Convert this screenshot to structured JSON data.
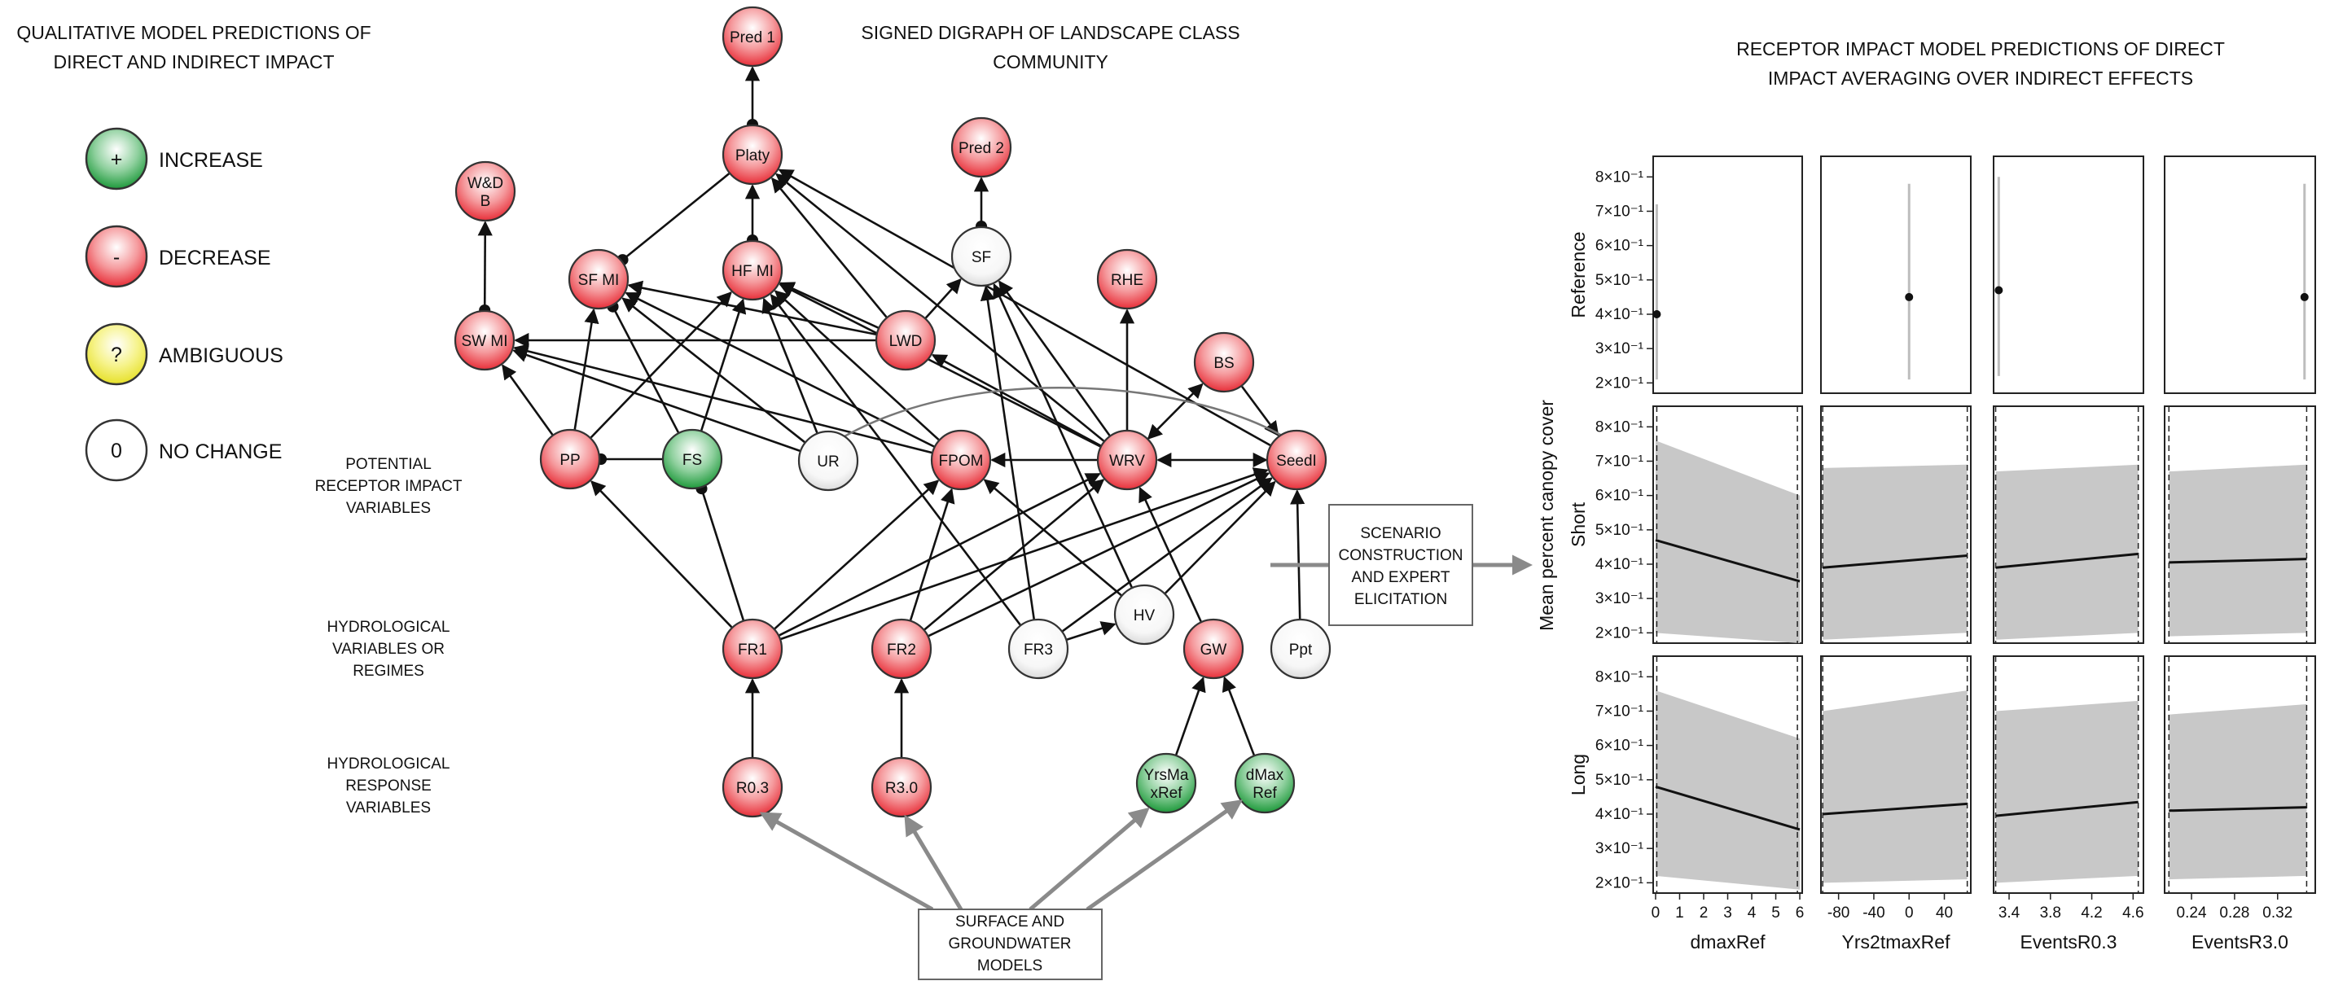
{
  "headers": {
    "left": [
      "QUALITATIVE MODEL PREDICTIONS OF",
      "DIRECT AND INDIRECT IMPACT"
    ],
    "middle": [
      "SIGNED DIGRAPH OF LANDSCAPE CLASS",
      "COMMUNITY"
    ],
    "right": [
      "RECEPTOR IMPACT MODEL PREDICTIONS OF DIRECT",
      "IMPACT AVERAGING OVER INDIRECT EFFECTS"
    ]
  },
  "legend": [
    {
      "symbol": "+",
      "label": "INCREASE",
      "color": "#1f9a3c"
    },
    {
      "symbol": "-",
      "label": "DECREASE",
      "color": "#e8303a"
    },
    {
      "symbol": "?",
      "label": "AMBIGUOUS",
      "color": "#f2ef3a"
    },
    {
      "symbol": "0",
      "label": "NO CHANGE",
      "color": "#ffffff"
    }
  ],
  "side_labels": {
    "receptor": [
      "POTENTIAL",
      "RECEPTOR IMPACT",
      "VARIABLES"
    ],
    "hydro_vars": [
      "HYDROLOGICAL",
      "VARIABLES OR",
      "REGIMES"
    ],
    "hydro_resp": [
      "HYDROLOGICAL",
      "RESPONSE",
      "VARIABLES"
    ]
  },
  "nodes": {
    "pred1": {
      "label": [
        "Pred 1"
      ],
      "type": "decrease"
    },
    "pred2": {
      "label": [
        "Pred 2"
      ],
      "type": "decrease"
    },
    "platy": {
      "label": [
        "Platy"
      ],
      "type": "decrease"
    },
    "wdb": {
      "label": [
        "W&D",
        "B"
      ],
      "type": "decrease"
    },
    "sfmi": {
      "label": [
        "SF MI"
      ],
      "type": "decrease"
    },
    "hfmi": {
      "label": [
        "HF MI"
      ],
      "type": "decrease"
    },
    "sf": {
      "label": [
        "SF"
      ],
      "type": "nochange"
    },
    "rhe": {
      "label": [
        "RHE"
      ],
      "type": "decrease"
    },
    "swmi": {
      "label": [
        "SW MI"
      ],
      "type": "decrease"
    },
    "lwd": {
      "label": [
        "LWD"
      ],
      "type": "decrease"
    },
    "bs": {
      "label": [
        "BS"
      ],
      "type": "decrease"
    },
    "pp": {
      "label": [
        "PP"
      ],
      "type": "decrease"
    },
    "fs": {
      "label": [
        "FS"
      ],
      "type": "increase"
    },
    "ur": {
      "label": [
        "UR"
      ],
      "type": "nochange"
    },
    "fpom": {
      "label": [
        "FPOM"
      ],
      "type": "decrease"
    },
    "wrv": {
      "label": [
        "WRV"
      ],
      "type": "decrease"
    },
    "seedl": {
      "label": [
        "SeedI"
      ],
      "type": "decrease"
    },
    "fr1": {
      "label": [
        "FR1"
      ],
      "type": "decrease"
    },
    "fr2": {
      "label": [
        "FR2"
      ],
      "type": "decrease"
    },
    "fr3": {
      "label": [
        "FR3"
      ],
      "type": "nochange"
    },
    "hv": {
      "label": [
        "HV"
      ],
      "type": "nochange"
    },
    "gw": {
      "label": [
        "GW"
      ],
      "type": "decrease"
    },
    "ppt": {
      "label": [
        "Ppt"
      ],
      "type": "nochange"
    },
    "r03": {
      "label": [
        "R0.3"
      ],
      "type": "decrease"
    },
    "r30": {
      "label": [
        "R3.0"
      ],
      "type": "decrease"
    },
    "yrs": {
      "label": [
        "YrsMa",
        "xRef"
      ],
      "type": "increase"
    },
    "dmax": {
      "label": [
        "dMax",
        "Ref"
      ],
      "type": "increase"
    }
  },
  "boxes": {
    "scenario": [
      "SCENARIO",
      "CONSTRUCTION",
      "AND EXPERT",
      "ELICITATION"
    ],
    "surface": [
      "SURFACE AND",
      "GROUNDWATER",
      "MODELS"
    ]
  },
  "chart_data": {
    "type": "line",
    "ylabel": "Mean percent canopy cover",
    "rows": [
      "Reference",
      "Short",
      "Long"
    ],
    "y_tick_labels": [
      "2×10⁻¹",
      "3×10⁻¹",
      "4×10⁻¹",
      "5×10⁻¹",
      "6×10⁻¹",
      "7×10⁻¹",
      "8×10⁻¹"
    ],
    "y_ticks": [
      0.2,
      0.3,
      0.4,
      0.5,
      0.6,
      0.7,
      0.8
    ],
    "ylim": [
      0.17,
      0.86
    ],
    "columns": [
      {
        "xlabel": "dmaxRef",
        "xlim": [
          -0.1,
          6.1
        ],
        "xticks": [
          0,
          1,
          2,
          3,
          4,
          5,
          6
        ],
        "xtick_labels": [
          "0",
          "1",
          "2",
          "3",
          "4",
          "5",
          "6"
        ],
        "vlines": [
          0.05,
          5.9
        ]
      },
      {
        "xlabel": "Yrs2tmaxRef",
        "xlim": [
          -100,
          70
        ],
        "xticks": [
          -80,
          -40,
          0,
          40
        ],
        "xtick_labels": [
          "-80",
          "-40",
          "0",
          "40"
        ],
        "vlines": [
          -98,
          66
        ]
      },
      {
        "xlabel": "EventsR0.3",
        "xlim": [
          3.25,
          4.7
        ],
        "xticks": [
          3.4,
          3.8,
          4.2,
          4.6
        ],
        "xtick_labels": [
          "3.4",
          "3.8",
          "4.2",
          "4.6"
        ],
        "vlines": [
          3.27,
          4.65
        ]
      },
      {
        "xlabel": "EventsR3.0",
        "xlim": [
          0.215,
          0.355
        ],
        "xticks": [
          0.24,
          0.28,
          0.32
        ],
        "xtick_labels": [
          "0.24",
          "0.28",
          "0.32"
        ],
        "vlines": [
          0.219,
          0.347
        ]
      }
    ],
    "reference": [
      {
        "x": 0.05,
        "y": 0.4,
        "lo": 0.21,
        "hi": 0.72
      },
      {
        "x": 0,
        "y": 0.45,
        "lo": 0.21,
        "hi": 0.78
      },
      {
        "x": 3.3,
        "y": 0.47,
        "lo": 0.22,
        "hi": 0.8
      },
      {
        "x": 0.345,
        "y": 0.45,
        "lo": 0.21,
        "hi": 0.78
      }
    ],
    "short": [
      {
        "x": [
          0,
          6
        ],
        "y": [
          0.47,
          0.35
        ],
        "lower": [
          0.2,
          0.17
        ],
        "upper": [
          0.76,
          0.6
        ]
      },
      {
        "x": [
          -98,
          66
        ],
        "y": [
          0.39,
          0.425
        ],
        "lower": [
          0.18,
          0.2
        ],
        "upper": [
          0.68,
          0.69
        ]
      },
      {
        "x": [
          3.27,
          4.65
        ],
        "y": [
          0.39,
          0.43
        ],
        "lower": [
          0.18,
          0.2
        ],
        "upper": [
          0.67,
          0.69
        ]
      },
      {
        "x": [
          0.219,
          0.347
        ],
        "y": [
          0.405,
          0.415
        ],
        "lower": [
          0.19,
          0.2
        ],
        "upper": [
          0.67,
          0.69
        ]
      }
    ],
    "long": [
      {
        "x": [
          0,
          6
        ],
        "y": [
          0.48,
          0.355
        ],
        "lower": [
          0.22,
          0.18
        ],
        "upper": [
          0.76,
          0.62
        ]
      },
      {
        "x": [
          -98,
          66
        ],
        "y": [
          0.4,
          0.43
        ],
        "lower": [
          0.2,
          0.21
        ],
        "upper": [
          0.7,
          0.76
        ]
      },
      {
        "x": [
          3.27,
          4.65
        ],
        "y": [
          0.395,
          0.435
        ],
        "lower": [
          0.2,
          0.22
        ],
        "upper": [
          0.7,
          0.73
        ]
      },
      {
        "x": [
          0.219,
          0.347
        ],
        "y": [
          0.41,
          0.42
        ],
        "lower": [
          0.21,
          0.22
        ],
        "upper": [
          0.69,
          0.72
        ]
      }
    ]
  }
}
